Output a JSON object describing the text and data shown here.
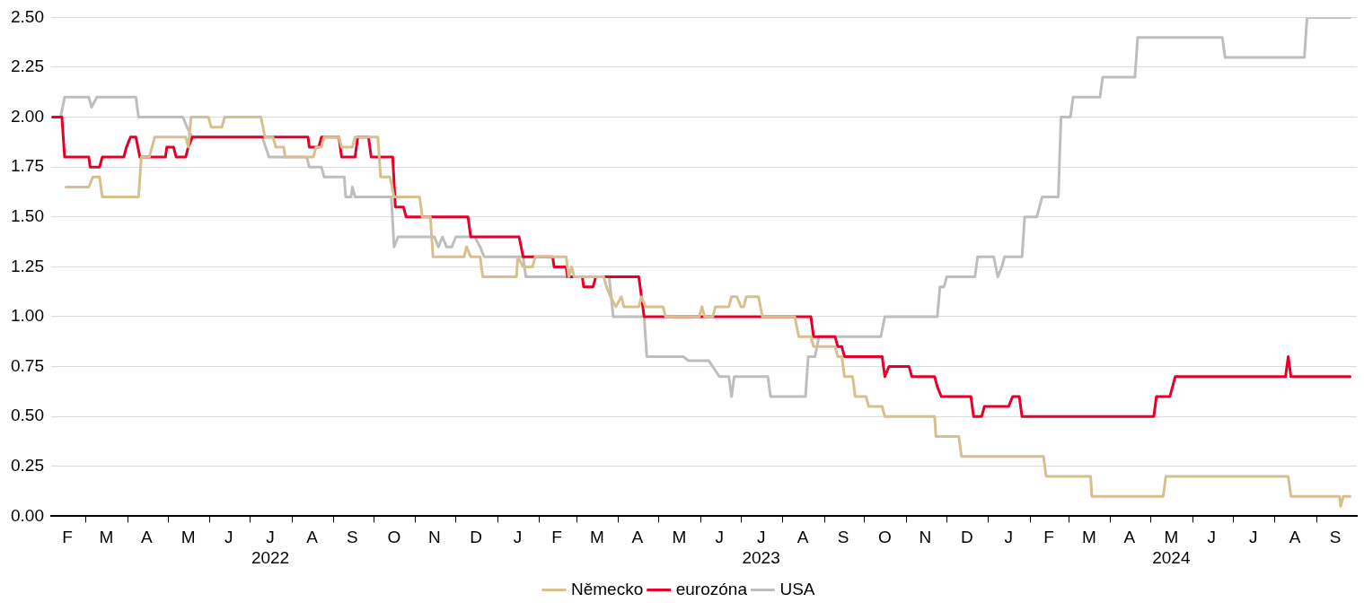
{
  "chart_data": {
    "type": "line",
    "legend": "bottom",
    "grid": "y",
    "marker": "none",
    "line_style": "solid",
    "xlim": [
      "2022-02-03",
      "2024-10-01"
    ],
    "ylim": [
      0,
      2.5
    ],
    "yticks": [
      {
        "value": 0,
        "label": "0.00"
      },
      {
        "value": 0.25,
        "label": "0.25"
      },
      {
        "value": 0.5,
        "label": "0.50"
      },
      {
        "value": 0.75,
        "label": "0.75"
      },
      {
        "value": 1,
        "label": "1.00"
      },
      {
        "value": 1.25,
        "label": "1.25"
      },
      {
        "value": 1.5,
        "label": "1.50"
      },
      {
        "value": 1.75,
        "label": "1.75"
      },
      {
        "value": 2,
        "label": "2.00"
      },
      {
        "value": 2.25,
        "label": "2.25"
      },
      {
        "value": 2.5,
        "label": "2.50"
      }
    ],
    "xticks": [
      {
        "value": "2022-02-15",
        "label": "F"
      },
      {
        "value": "2022-03-01",
        "label": null
      },
      {
        "value": "2022-03-16",
        "label": "M"
      },
      {
        "value": "2022-04-01",
        "label": null
      },
      {
        "value": "2022-04-15",
        "label": "A"
      },
      {
        "value": "2022-05-01",
        "label": null
      },
      {
        "value": "2022-05-16",
        "label": "M"
      },
      {
        "value": "2022-06-01",
        "label": null
      },
      {
        "value": "2022-06-15",
        "label": "J"
      },
      {
        "value": "2022-07-01",
        "label": null
      },
      {
        "value": "2022-07-16",
        "label": "J\n2022"
      },
      {
        "value": "2022-08-01",
        "label": null
      },
      {
        "value": "2022-08-16",
        "label": "A"
      },
      {
        "value": "2022-09-01",
        "label": null
      },
      {
        "value": "2022-09-15",
        "label": "S"
      },
      {
        "value": "2022-10-01",
        "label": null
      },
      {
        "value": "2022-10-16",
        "label": "O"
      },
      {
        "value": "2022-11-01",
        "label": null
      },
      {
        "value": "2022-11-15",
        "label": "N"
      },
      {
        "value": "2022-12-01",
        "label": null
      },
      {
        "value": "2022-12-16",
        "label": "D"
      },
      {
        "value": "2023-01-01",
        "label": null
      },
      {
        "value": "2023-01-16",
        "label": "J"
      },
      {
        "value": "2023-02-01",
        "label": null
      },
      {
        "value": "2023-02-14",
        "label": "F"
      },
      {
        "value": "2023-03-01",
        "label": null
      },
      {
        "value": "2023-03-16",
        "label": "M"
      },
      {
        "value": "2023-04-01",
        "label": null
      },
      {
        "value": "2023-04-15",
        "label": "A"
      },
      {
        "value": "2023-05-01",
        "label": null
      },
      {
        "value": "2023-05-16",
        "label": "M"
      },
      {
        "value": "2023-06-01",
        "label": null
      },
      {
        "value": "2023-06-15",
        "label": "J"
      },
      {
        "value": "2023-07-01",
        "label": null
      },
      {
        "value": "2023-07-16",
        "label": "J\n2023"
      },
      {
        "value": "2023-08-01",
        "label": null
      },
      {
        "value": "2023-08-16",
        "label": "A"
      },
      {
        "value": "2023-09-01",
        "label": null
      },
      {
        "value": "2023-09-15",
        "label": "S"
      },
      {
        "value": "2023-10-01",
        "label": null
      },
      {
        "value": "2023-10-16",
        "label": "O"
      },
      {
        "value": "2023-11-01",
        "label": null
      },
      {
        "value": "2023-11-15",
        "label": "N"
      },
      {
        "value": "2023-12-01",
        "label": null
      },
      {
        "value": "2023-12-16",
        "label": "D"
      },
      {
        "value": "2024-01-01",
        "label": null
      },
      {
        "value": "2024-01-16",
        "label": "J"
      },
      {
        "value": "2024-02-01",
        "label": null
      },
      {
        "value": "2024-02-15",
        "label": "F"
      },
      {
        "value": "2024-03-01",
        "label": null
      },
      {
        "value": "2024-03-16",
        "label": "M"
      },
      {
        "value": "2024-04-01",
        "label": null
      },
      {
        "value": "2024-04-15",
        "label": "A"
      },
      {
        "value": "2024-05-01",
        "label": null
      },
      {
        "value": "2024-05-16",
        "label": "M\n2024"
      },
      {
        "value": "2024-06-01",
        "label": null
      },
      {
        "value": "2024-06-15",
        "label": "J"
      },
      {
        "value": "2024-07-01",
        "label": null
      },
      {
        "value": "2024-07-16",
        "label": "J"
      },
      {
        "value": "2024-08-01",
        "label": null
      },
      {
        "value": "2024-08-16",
        "label": "A"
      },
      {
        "value": "2024-09-01",
        "label": null
      },
      {
        "value": "2024-09-15",
        "label": "S"
      }
    ],
    "series": [
      {
        "name": "Německo",
        "color": "#d6c08f",
        "x": [
          "2022-02-14",
          "2022-03-03",
          "2022-03-06",
          "2022-03-11",
          "2022-03-13",
          "2022-04-09",
          "2022-04-11",
          "2022-04-17",
          "2022-04-21",
          "2022-05-14",
          "2022-05-16",
          "2022-05-18",
          "2022-05-31",
          "2022-06-02",
          "2022-06-10",
          "2022-06-12",
          "2022-07-09",
          "2022-07-12",
          "2022-07-18",
          "2022-07-20",
          "2022-07-26",
          "2022-07-27",
          "2022-08-17",
          "2022-08-19",
          "2022-08-23",
          "2022-08-25",
          "2022-09-05",
          "2022-09-07",
          "2022-09-15",
          "2022-09-17",
          "2022-10-04",
          "2022-10-06",
          "2022-10-13",
          "2022-10-16",
          "2022-11-04",
          "2022-11-06",
          "2022-11-12",
          "2022-11-14",
          "2022-12-07",
          "2022-12-09",
          "2022-12-12",
          "2022-12-19",
          "2022-12-21",
          "2023-01-15",
          "2023-01-16",
          "2023-01-20",
          "2023-01-27",
          "2023-01-29",
          "2023-02-21",
          "2023-02-23",
          "2023-02-25",
          "2023-02-27",
          "2023-03-21",
          "2023-03-23",
          "2023-03-26",
          "2023-03-30",
          "2023-04-03",
          "2023-04-05",
          "2023-04-16",
          "2023-04-18",
          "2023-04-21",
          "2023-05-04",
          "2023-05-06",
          "2023-05-31",
          "2023-06-02",
          "2023-06-04",
          "2023-06-10",
          "2023-06-12",
          "2023-06-22",
          "2023-06-24",
          "2023-06-28",
          "2023-07-01",
          "2023-07-03",
          "2023-07-05",
          "2023-07-14",
          "2023-07-17",
          "2023-08-10",
          "2023-08-13",
          "2023-08-22",
          "2023-08-24",
          "2023-09-09",
          "2023-09-11",
          "2023-09-14",
          "2023-09-16",
          "2023-09-22",
          "2023-09-24",
          "2023-10-02",
          "2023-10-04",
          "2023-10-14",
          "2023-10-16",
          "2023-11-22",
          "2023-11-23",
          "2023-12-10",
          "2023-12-12",
          "2024-02-11",
          "2024-02-13",
          "2024-03-17",
          "2024-03-18",
          "2024-05-10",
          "2024-05-12",
          "2024-08-11",
          "2024-08-13",
          "2024-09-18",
          "2024-09-19",
          "2024-09-21",
          "2024-09-26"
        ],
        "values": [
          1.65,
          1.65,
          1.7,
          1.7,
          1.6,
          1.6,
          1.8,
          1.8,
          1.9,
          1.9,
          1.85,
          2,
          2,
          1.95,
          1.95,
          2,
          2,
          1.9,
          1.9,
          1.85,
          1.85,
          1.8,
          1.8,
          1.85,
          1.85,
          1.9,
          1.9,
          1.85,
          1.85,
          1.9,
          1.9,
          1.7,
          1.7,
          1.6,
          1.6,
          1.5,
          1.5,
          1.3,
          1.3,
          1.35,
          1.3,
          1.3,
          1.2,
          1.2,
          1.3,
          1.25,
          1.25,
          1.3,
          1.3,
          1.2,
          1.25,
          1.2,
          1.2,
          1.15,
          1.1,
          1.05,
          1.1,
          1.05,
          1.05,
          1.1,
          1.05,
          1.05,
          1,
          1,
          1.05,
          1,
          1,
          1.05,
          1.05,
          1.1,
          1.1,
          1.05,
          1.05,
          1.1,
          1.1,
          1,
          1,
          0.9,
          0.9,
          0.85,
          0.85,
          0.8,
          0.8,
          0.7,
          0.7,
          0.6,
          0.6,
          0.55,
          0.55,
          0.5,
          0.5,
          0.4,
          0.4,
          0.3,
          0.3,
          0.2,
          0.2,
          0.1,
          0.1,
          0.2,
          0.2,
          0.1,
          0.1,
          0.05,
          0.1,
          0.1
        ]
      },
      {
        "name": "eurozóna",
        "color": "#e4002b",
        "x": [
          "2022-02-04",
          "2022-02-11",
          "2022-02-13",
          "2022-03-03",
          "2022-03-04",
          "2022-03-11",
          "2022-03-13",
          "2022-03-29",
          "2022-03-31",
          "2022-04-03",
          "2022-04-07",
          "2022-04-10",
          "2022-04-29",
          "2022-04-30",
          "2022-05-05",
          "2022-05-07",
          "2022-05-14",
          "2022-05-16",
          "2022-05-19",
          "2022-08-13",
          "2022-08-14",
          "2022-08-21",
          "2022-08-23",
          "2022-09-05",
          "2022-09-07",
          "2022-09-17",
          "2022-09-19",
          "2022-09-27",
          "2022-09-29",
          "2022-10-15",
          "2022-10-17",
          "2022-10-23",
          "2022-10-25",
          "2022-12-10",
          "2022-12-12",
          "2023-01-17",
          "2023-01-20",
          "2023-02-11",
          "2023-02-12",
          "2023-02-21",
          "2023-02-22",
          "2023-03-05",
          "2023-03-06",
          "2023-03-13",
          "2023-03-15",
          "2023-04-16",
          "2023-04-18",
          "2023-04-20",
          "2023-08-22",
          "2023-08-24",
          "2023-09-09",
          "2023-09-11",
          "2023-09-14",
          "2023-09-16",
          "2023-10-14",
          "2023-10-16",
          "2023-10-19",
          "2023-11-03",
          "2023-11-05",
          "2023-11-22",
          "2023-11-24",
          "2023-11-27",
          "2023-12-19",
          "2023-12-21",
          "2023-12-27",
          "2023-12-29",
          "2024-01-16",
          "2024-01-19",
          "2024-01-24",
          "2024-01-26",
          "2024-05-03",
          "2024-05-05",
          "2024-05-15",
          "2024-05-19",
          "2024-08-09",
          "2024-08-11",
          "2024-08-13",
          "2024-09-26"
        ],
        "values": [
          2,
          2,
          1.8,
          1.8,
          1.75,
          1.75,
          1.8,
          1.8,
          1.85,
          1.9,
          1.9,
          1.8,
          1.8,
          1.85,
          1.85,
          1.8,
          1.8,
          1.85,
          1.9,
          1.9,
          1.85,
          1.85,
          1.9,
          1.9,
          1.8,
          1.8,
          1.9,
          1.9,
          1.8,
          1.8,
          1.55,
          1.55,
          1.5,
          1.5,
          1.4,
          1.4,
          1.3,
          1.3,
          1.25,
          1.25,
          1.2,
          1.2,
          1.15,
          1.15,
          1.2,
          1.2,
          1.1,
          1,
          1,
          0.9,
          0.9,
          0.85,
          0.85,
          0.8,
          0.8,
          0.7,
          0.75,
          0.75,
          0.7,
          0.7,
          0.65,
          0.6,
          0.6,
          0.5,
          0.5,
          0.55,
          0.55,
          0.6,
          0.6,
          0.5,
          0.5,
          0.6,
          0.6,
          0.7,
          0.7,
          0.8,
          0.7,
          0.7
        ]
      },
      {
        "name": "USA",
        "color": "#c0bdbd",
        "x": [
          "2022-02-10",
          "2022-02-13",
          "2022-03-03",
          "2022-03-05",
          "2022-03-09",
          "2022-04-07",
          "2022-04-09",
          "2022-05-12",
          "2022-05-15",
          "2022-05-19",
          "2022-07-10",
          "2022-07-15",
          "2022-08-12",
          "2022-08-14",
          "2022-08-23",
          "2022-08-25",
          "2022-09-09",
          "2022-09-10",
          "2022-09-14",
          "2022-09-15",
          "2022-09-17",
          "2022-10-14",
          "2022-10-16",
          "2022-10-19",
          "2022-11-15",
          "2022-11-18",
          "2022-11-21",
          "2022-11-24",
          "2022-11-28",
          "2022-12-01",
          "2022-12-15",
          "2022-12-19",
          "2022-12-22",
          "2023-01-20",
          "2023-01-22",
          "2023-03-25",
          "2023-03-28",
          "2023-04-20",
          "2023-04-22",
          "2023-05-19",
          "2023-05-23",
          "2023-06-07",
          "2023-06-10",
          "2023-06-15",
          "2023-06-22",
          "2023-06-24",
          "2023-06-26",
          "2023-07-21",
          "2023-07-23",
          "2023-08-18",
          "2023-08-20",
          "2023-08-25",
          "2023-08-28",
          "2023-10-13",
          "2023-10-16",
          "2023-11-24",
          "2023-11-26",
          "2023-11-29",
          "2023-12-01",
          "2023-12-22",
          "2023-12-24",
          "2024-01-05",
          "2024-01-08",
          "2024-01-11",
          "2024-01-13",
          "2024-01-26",
          "2024-01-28",
          "2024-02-06",
          "2024-02-08",
          "2024-02-10",
          "2024-02-22",
          "2024-02-24",
          "2024-03-02",
          "2024-03-04",
          "2024-03-24",
          "2024-03-26",
          "2024-04-19",
          "2024-04-21",
          "2024-06-23",
          "2024-06-25",
          "2024-08-23",
          "2024-08-25",
          "2024-09-26"
        ],
        "values": [
          2,
          2.1,
          2.1,
          2.05,
          2.1,
          2.1,
          2,
          2,
          1.95,
          1.9,
          1.9,
          1.8,
          1.8,
          1.75,
          1.75,
          1.7,
          1.7,
          1.6,
          1.6,
          1.65,
          1.6,
          1.6,
          1.35,
          1.4,
          1.4,
          1.35,
          1.4,
          1.35,
          1.35,
          1.4,
          1.4,
          1.35,
          1.3,
          1.3,
          1.2,
          1.2,
          1,
          1,
          0.8,
          0.8,
          0.78,
          0.78,
          0.75,
          0.7,
          0.7,
          0.6,
          0.7,
          0.7,
          0.6,
          0.6,
          0.8,
          0.8,
          0.9,
          0.9,
          1,
          1,
          1.15,
          1.15,
          1.2,
          1.2,
          1.3,
          1.3,
          1.2,
          1.25,
          1.3,
          1.3,
          1.5,
          1.5,
          1.55,
          1.6,
          1.6,
          2,
          2,
          2.1,
          2.1,
          2.2,
          2.2,
          2.4,
          2.4,
          2.3,
          2.3,
          2.5,
          2.5
        ]
      }
    ]
  }
}
